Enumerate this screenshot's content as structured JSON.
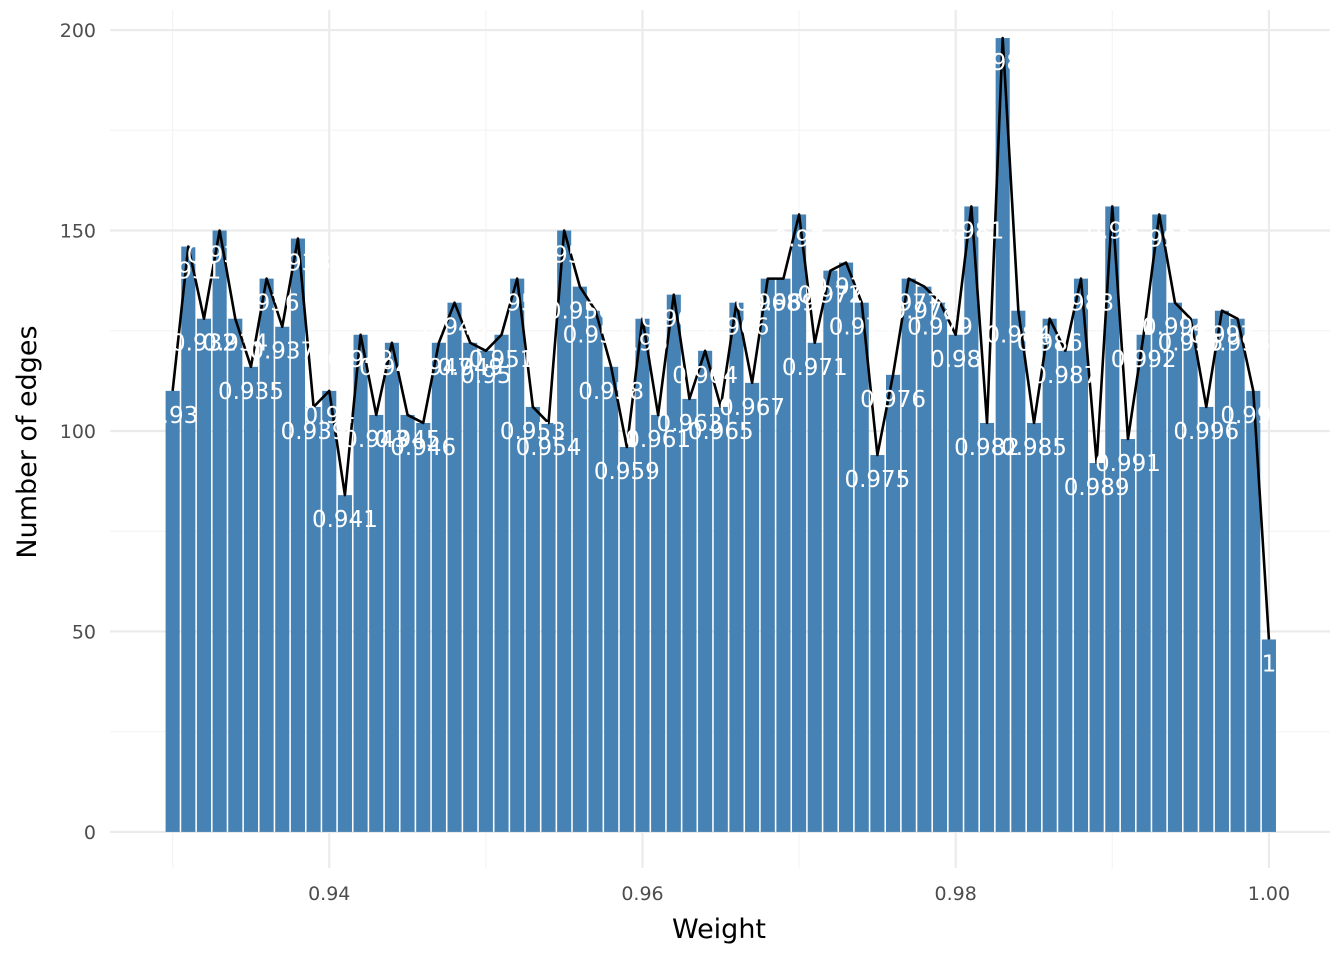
{
  "chart_data": {
    "type": "bar",
    "title": "",
    "xlabel": "Weight",
    "ylabel": "Number of edges",
    "xlim": [
      0.926,
      1.0039
    ],
    "ylim": [
      -9,
      205
    ],
    "x_ticks": [
      0.94,
      0.96,
      0.98,
      1.0
    ],
    "x_tick_labels": [
      "0.94",
      "0.96",
      "0.98",
      "1.00"
    ],
    "y_ticks": [
      0,
      50,
      100,
      150,
      200
    ],
    "y_tick_labels": [
      "0",
      "50",
      "100",
      "150",
      "200"
    ],
    "grid": true,
    "bar_color": "#4682B4",
    "line_color": "#000000",
    "label_color": "#ffffff",
    "overlay": "line through bar tops",
    "x": [
      0.93,
      0.931,
      0.932,
      0.933,
      0.934,
      0.935,
      0.936,
      0.937,
      0.938,
      0.939,
      0.94,
      0.941,
      0.942,
      0.943,
      0.944,
      0.945,
      0.946,
      0.947,
      0.948,
      0.949,
      0.95,
      0.951,
      0.952,
      0.953,
      0.954,
      0.955,
      0.956,
      0.957,
      0.958,
      0.959,
      0.96,
      0.961,
      0.962,
      0.963,
      0.964,
      0.965,
      0.966,
      0.967,
      0.968,
      0.969,
      0.97,
      0.971,
      0.972,
      0.973,
      0.974,
      0.975,
      0.976,
      0.977,
      0.978,
      0.979,
      0.98,
      0.981,
      0.982,
      0.983,
      0.984,
      0.985,
      0.986,
      0.987,
      0.988,
      0.989,
      0.99,
      0.991,
      0.992,
      0.993,
      0.994,
      0.995,
      0.996,
      0.997,
      0.998,
      0.999,
      1.0
    ],
    "values": [
      110,
      146,
      128,
      150,
      128,
      116,
      138,
      126,
      148,
      106,
      110,
      84,
      124,
      104,
      122,
      104,
      102,
      122,
      132,
      122,
      120,
      124,
      138,
      106,
      102,
      150,
      136,
      130,
      116,
      96,
      128,
      104,
      134,
      108,
      120,
      106,
      132,
      112,
      138,
      138,
      154,
      122,
      140,
      142,
      132,
      94,
      114,
      138,
      136,
      132,
      124,
      156,
      102,
      198,
      130,
      102,
      128,
      120,
      138,
      92,
      156,
      98,
      124,
      154,
      132,
      128,
      106,
      130,
      128,
      110,
      48
    ],
    "labels": [
      "0.93",
      "0.931",
      "0.932",
      "0.933",
      "0.934",
      "0.935",
      "0.936",
      "0.937",
      "0.938",
      "0.939",
      "0.94",
      "0.941",
      "0.942",
      "0.943",
      "0.944",
      "0.945",
      "0.946",
      "0.947",
      "0.948",
      "0.949",
      "0.95",
      "0.951",
      "0.952",
      "0.953",
      "0.954",
      "0.955",
      "0.956",
      "0.957",
      "0.958",
      "0.959",
      "0.96",
      "0.961",
      "0.962",
      "0.963",
      "0.964",
      "0.965",
      "0.966",
      "0.967",
      "0.968",
      "0.969",
      "0.97",
      "0.971",
      "0.972",
      "0.973",
      "0.974",
      "0.975",
      "0.976",
      "0.977",
      "0.978",
      "0.979",
      "0.98",
      "0.981",
      "0.982",
      "0.983",
      "0.984",
      "0.985",
      "0.986",
      "0.987",
      "0.988",
      "0.989",
      "0.99",
      "0.991",
      "0.992",
      "0.993",
      "0.994",
      "0.995",
      "0.996",
      "0.997",
      "0.998",
      "0.999",
      "1"
    ]
  }
}
